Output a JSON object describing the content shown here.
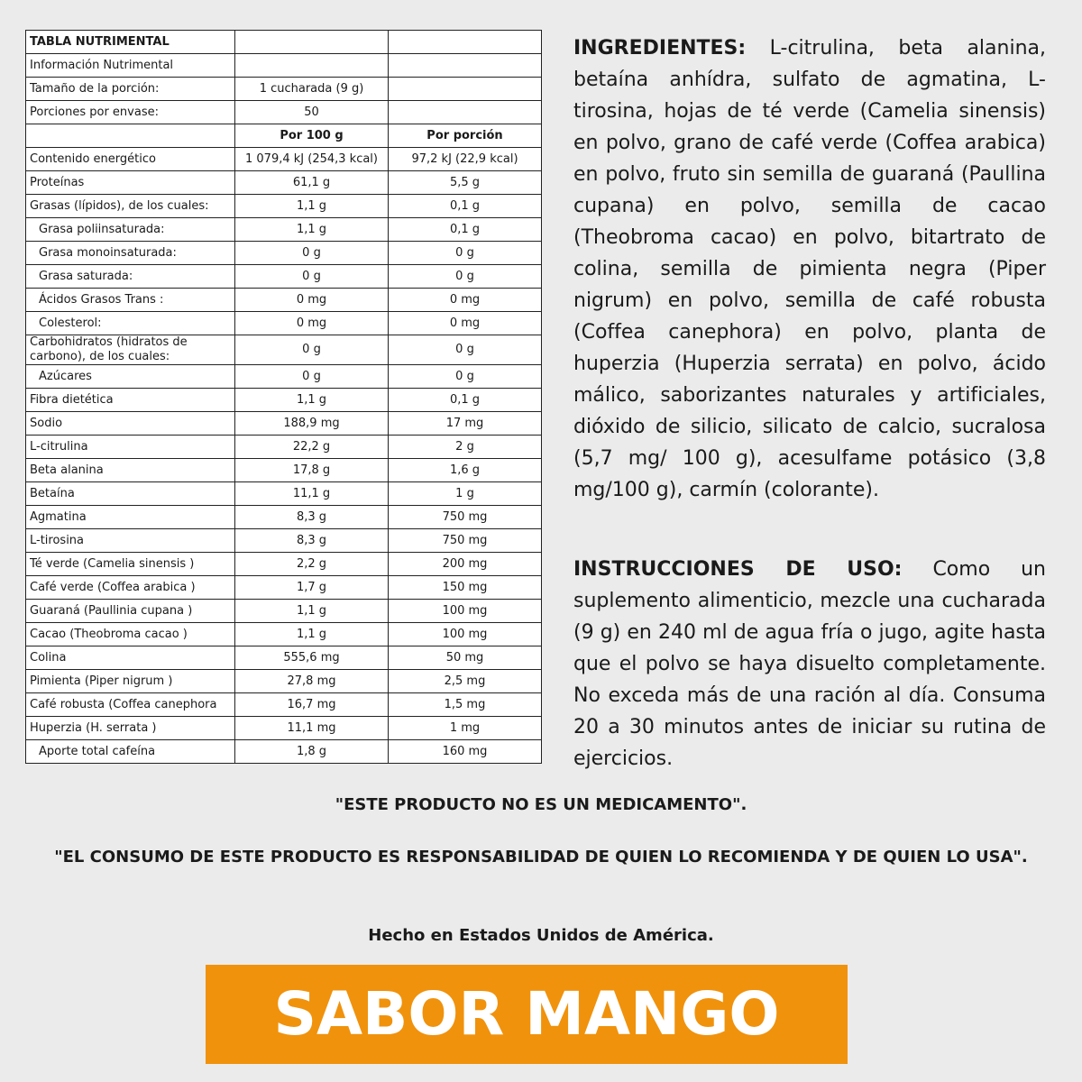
{
  "table": {
    "title": "TABLA NUTRIMENTAL",
    "subtitle": "Información Nutrimental",
    "serving": {
      "label": "Tamaño de la porción:",
      "value": "1 cucharada (9 g)"
    },
    "portions": {
      "label": "Porciones por envase:",
      "value": "50"
    },
    "columns": [
      "Por 100 g",
      "Por porción"
    ],
    "rows": [
      [
        "Contenido energético",
        "1 079,4 kJ (254,3 kcal)",
        "97,2 kJ (22,9 kcal)"
      ],
      [
        "Proteínas",
        "61,1 g",
        "5,5 g"
      ],
      [
        "Grasas (lípidos), de los cuales:",
        "1,1 g",
        "0,1 g"
      ],
      [
        "Grasa poliinsaturada:",
        "1,1 g",
        "0,1 g"
      ],
      [
        "Grasa monoinsaturada:",
        "0 g",
        "0 g"
      ],
      [
        "Grasa saturada:",
        "0 g",
        "0 g"
      ],
      [
        "Ácidos Grasos Trans :",
        "0 mg",
        "0 mg"
      ],
      [
        "Colesterol:",
        "0 mg",
        "0 mg"
      ],
      [
        "Carbohidratos (hidratos de carbono), de los cuales:",
        "0 g",
        "0 g"
      ],
      [
        "Azúcares",
        "0 g",
        "0 g"
      ],
      [
        "Fibra dietética",
        "1,1 g",
        "0,1 g"
      ],
      [
        "Sodio",
        "188,9 mg",
        "17 mg"
      ],
      [
        "L-citrulina",
        "22,2 g",
        "2 g"
      ],
      [
        "Beta alanina",
        "17,8 g",
        "1,6 g"
      ],
      [
        "Betaína",
        "11,1 g",
        "1 g"
      ],
      [
        "Agmatina",
        "8,3 g",
        "750 mg"
      ],
      [
        "L-tirosina",
        "8,3 g",
        "750 mg"
      ],
      [
        "Té verde (Camelia sinensis )",
        "2,2 g",
        "200 mg"
      ],
      [
        "Café verde (Coffea arabica )",
        "1,7 g",
        "150 mg"
      ],
      [
        "Guaraná (Paullinia cupana )",
        "1,1 g",
        "100 mg"
      ],
      [
        "Cacao (Theobroma cacao )",
        "1,1 g",
        "100 mg"
      ],
      [
        "Colina",
        "555,6 mg",
        "50 mg"
      ],
      [
        "Pimienta (Piper nigrum )",
        "27,8 mg",
        "2,5 mg"
      ],
      [
        "Café robusta (Coffea canephora",
        "16,7 mg",
        "1,5 mg"
      ],
      [
        "Huperzia (H. serrata )",
        "11,1 mg",
        "1 mg"
      ],
      [
        "Aporte total cafeína",
        "1,8 g",
        "160 mg"
      ]
    ]
  },
  "ingredients": {
    "label": "INGREDIENTES:",
    "text": "L-citrulina, beta alanina, betaína anhídra, sulfato de agmatina, L-tirosina, hojas de té verde (Camelia sinensis) en polvo, grano de café verde (Coffea arabica) en polvo, fruto sin semilla de guaraná (Paullina cupana) en polvo, semilla de cacao (Theobroma cacao) en polvo, bitartrato de colina, semilla de pimienta negra (Piper nigrum) en polvo, semilla de café robusta (Coffea canephora) en polvo, planta de huperzia (Huperzia serrata) en polvo, ácido málico, saborizantes naturales y artificiales, dióxido de silicio, silicato de calcio, sucralosa (5,7 mg/ 100 g), acesulfame potásico (3,8 mg/100 g), carmín (colorante)."
  },
  "instructions": {
    "label": "INSTRUCCIONES DE USO:",
    "text": "Como un suplemento alimenticio, mezcle una cucharada (9 g) en 240 ml de agua fría o jugo, agite hasta que el polvo se haya disuelto completamente. No exceda más de una ración al día. Consuma 20 a 30 minutos antes de iniciar su rutina de ejercicios."
  },
  "notices": [
    "\"ESTE PRODUCTO NO ES UN MEDICAMENTO\".",
    "\"EL CONSUMO DE ESTE PRODUCTO ES RESPONSABILIDAD DE QUIEN LO RECOMIENDA Y DE QUIEN LO USA\".",
    "Hecho en Estados Unidos de América."
  ],
  "flavor": "SABOR MANGO"
}
